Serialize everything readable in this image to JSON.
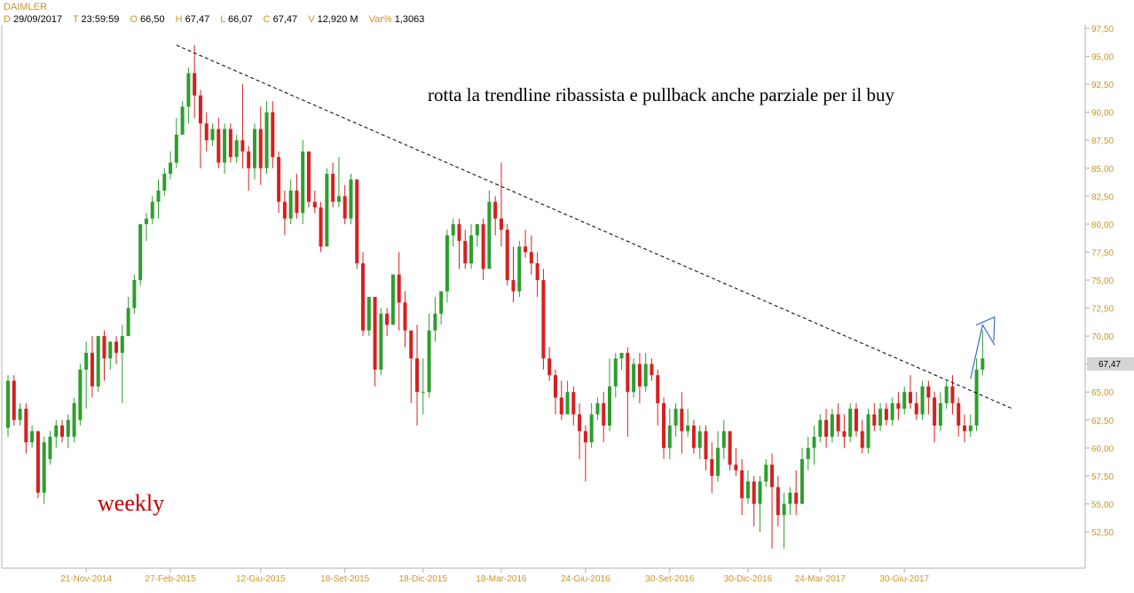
{
  "header": {
    "symbol": "DAIMLER",
    "date_label": "D",
    "date": "29/09/2017",
    "time_label": "T",
    "time": "23:59:59",
    "open_label": "O",
    "open": "66,50",
    "high_label": "H",
    "high": "67,47",
    "low_label": "L",
    "low": "66,07",
    "close_label": "C",
    "close": "67,47",
    "volume_label": "V",
    "volume": "12,920 M",
    "var_label": "Var%",
    "var": "1,3063"
  },
  "colors": {
    "up": "#2e9e2e",
    "down": "#d62020",
    "axis": "#c8962a",
    "trendline": "#000000",
    "arrow": "#3a6fc4",
    "weekly_text": "#c00000",
    "price_tag_bg": "#d4d4d4"
  },
  "chart_data": {
    "type": "candlestick",
    "timeframe_text": "weekly",
    "annotation": "rotta la trendline ribassista e pullback anche parziale per il buy",
    "ylim": [
      50,
      97.5
    ],
    "y_ticks": [
      "97,50",
      "95,00",
      "92,50",
      "90,00",
      "87,50",
      "85,00",
      "82,50",
      "80,00",
      "77,50",
      "75,00",
      "72,50",
      "70,00",
      "67,50",
      "65,00",
      "62,50",
      "60,00",
      "57,50",
      "55,00",
      "52,50"
    ],
    "y_tick_values": [
      97.5,
      95,
      92.5,
      90,
      87.5,
      85,
      82.5,
      80,
      77.5,
      75,
      72.5,
      70,
      67.5,
      65,
      62.5,
      60,
      57.5,
      55,
      52.5
    ],
    "x_ticks": [
      {
        "label": "21-Nov-2014",
        "index": 13
      },
      {
        "label": "27-Feb-2015",
        "index": 27
      },
      {
        "label": "12-Giu-2015",
        "index": 42
      },
      {
        "label": "18-Set-2015",
        "index": 56
      },
      {
        "label": "18-Dic-2015",
        "index": 69
      },
      {
        "label": "18-Mar-2016",
        "index": 82
      },
      {
        "label": "24-Giu-2016",
        "index": 96
      },
      {
        "label": "30-Set-2016",
        "index": 110
      },
      {
        "label": "30-Dic-2016",
        "index": 123
      },
      {
        "label": "24-Mar-2017",
        "index": 135
      },
      {
        "label": "30-Giu-2017",
        "index": 149
      }
    ],
    "last_price_label": "67,47",
    "last_price": 67.47,
    "trendline": {
      "start": {
        "index": 28,
        "price": 96.0
      },
      "end": {
        "index": 167,
        "price": 63.5
      }
    },
    "arrow": [
      {
        "index": 160,
        "price": 66.2
      },
      {
        "index": 162,
        "price": 71.0
      },
      {
        "index": 164,
        "price": 69.2
      },
      {
        "index": 164,
        "price": 71.7
      }
    ],
    "candles": [
      [
        61.8,
        66.0,
        61.0,
        66.5
      ],
      [
        66.0,
        62.5,
        62.0,
        66.5
      ],
      [
        62.5,
        63.5,
        62.0,
        64.0
      ],
      [
        63.5,
        60.5,
        59.5,
        64.0
      ],
      [
        60.5,
        61.5,
        60.0,
        62.0
      ],
      [
        61.5,
        56.0,
        55.5,
        61.5
      ],
      [
        56.0,
        60.5,
        55.0,
        61.0
      ],
      [
        59.0,
        61.0,
        58.5,
        61.5
      ],
      [
        61.0,
        62.0,
        60.0,
        62.5
      ],
      [
        62.0,
        61.0,
        60.5,
        62.5
      ],
      [
        61.0,
        62.5,
        60.0,
        63.0
      ],
      [
        61.0,
        64.0,
        60.5,
        64.5
      ],
      [
        62.5,
        67.0,
        62.0,
        67.5
      ],
      [
        67.0,
        68.5,
        63.5,
        69.5
      ],
      [
        68.5,
        65.5,
        64.5,
        70.0
      ],
      [
        65.5,
        70.0,
        65.0,
        70.0
      ],
      [
        70.0,
        68.0,
        66.0,
        70.5
      ],
      [
        68.0,
        69.5,
        67.0,
        69.5
      ],
      [
        69.5,
        68.5,
        67.5,
        70.0
      ],
      [
        68.5,
        70.0,
        64.0,
        71.0
      ],
      [
        70.0,
        72.5,
        70.0,
        73.5
      ],
      [
        72.5,
        75.0,
        72.0,
        75.5
      ],
      [
        75.0,
        80.0,
        74.5,
        80.0
      ],
      [
        80.0,
        80.5,
        78.5,
        81.0
      ],
      [
        80.5,
        82.0,
        80.0,
        82.5
      ],
      [
        82.0,
        83.0,
        80.5,
        84.0
      ],
      [
        83.0,
        84.5,
        82.5,
        85.0
      ],
      [
        84.5,
        85.5,
        84.0,
        86.5
      ],
      [
        85.5,
        88.0,
        85.0,
        89.5
      ],
      [
        88.0,
        90.5,
        88.0,
        91.0
      ],
      [
        90.5,
        93.5,
        89.0,
        94.0
      ],
      [
        93.5,
        91.5,
        89.5,
        96.0
      ],
      [
        91.5,
        89.0,
        85.0,
        92.0
      ],
      [
        89.0,
        87.5,
        86.5,
        90.0
      ],
      [
        87.5,
        88.5,
        87.0,
        89.0
      ],
      [
        88.5,
        85.5,
        85.0,
        89.5
      ],
      [
        85.5,
        88.5,
        84.5,
        89.0
      ],
      [
        88.5,
        86.0,
        85.5,
        89.0
      ],
      [
        86.0,
        87.5,
        85.5,
        88.0
      ],
      [
        87.5,
        86.5,
        85.0,
        92.5
      ],
      [
        86.5,
        85.0,
        83.0,
        87.0
      ],
      [
        85.0,
        88.5,
        84.0,
        89.0
      ],
      [
        88.5,
        85.0,
        83.5,
        90.5
      ],
      [
        85.0,
        90.0,
        84.5,
        91.0
      ],
      [
        90.0,
        86.0,
        85.0,
        91.0
      ],
      [
        86.0,
        82.0,
        81.0,
        86.5
      ],
      [
        82.0,
        80.5,
        79.0,
        83.0
      ],
      [
        80.5,
        83.0,
        80.0,
        84.0
      ],
      [
        83.0,
        81.0,
        80.5,
        84.5
      ],
      [
        81.0,
        86.5,
        80.0,
        87.5
      ],
      [
        86.5,
        82.0,
        81.5,
        86.5
      ],
      [
        82.0,
        81.5,
        81.0,
        83.0
      ],
      [
        81.5,
        78.0,
        77.5,
        82.0
      ],
      [
        78.0,
        84.5,
        78.0,
        85.0
      ],
      [
        84.5,
        82.0,
        81.5,
        85.5
      ],
      [
        82.0,
        82.5,
        81.5,
        86.0
      ],
      [
        82.5,
        80.5,
        80.0,
        83.5
      ],
      [
        80.5,
        84.0,
        80.0,
        84.5
      ],
      [
        84.0,
        76.5,
        76.0,
        84.0
      ],
      [
        76.5,
        70.5,
        70.0,
        77.5
      ],
      [
        70.5,
        73.5,
        70.0,
        73.5
      ],
      [
        73.5,
        67.0,
        65.5,
        73.5
      ],
      [
        67.0,
        72.0,
        66.5,
        72.5
      ],
      [
        72.0,
        71.0,
        70.0,
        72.5
      ],
      [
        71.0,
        75.5,
        71.0,
        75.5
      ],
      [
        75.5,
        73.0,
        70.5,
        77.5
      ],
      [
        73.0,
        70.5,
        69.0,
        74.0
      ],
      [
        70.5,
        68.0,
        64.0,
        70.5
      ],
      [
        68.0,
        65.0,
        62.0,
        71.0
      ],
      [
        65.0,
        65.0,
        63.0,
        68.0
      ],
      [
        65.0,
        70.5,
        64.5,
        72.0
      ],
      [
        70.5,
        72.0,
        69.5,
        73.5
      ],
      [
        72.0,
        74.0,
        71.0,
        74.0
      ],
      [
        74.0,
        79.0,
        73.0,
        79.5
      ],
      [
        79.0,
        80.0,
        78.0,
        80.5
      ],
      [
        80.0,
        78.5,
        76.0,
        80.5
      ],
      [
        78.5,
        76.5,
        76.0,
        79.5
      ],
      [
        76.5,
        79.0,
        76.0,
        80.0
      ],
      [
        79.0,
        80.0,
        78.0,
        80.0
      ],
      [
        80.0,
        76.0,
        75.0,
        80.5
      ],
      [
        76.0,
        82.0,
        76.0,
        83.0
      ],
      [
        82.0,
        80.5,
        79.0,
        82.5
      ],
      [
        80.5,
        79.5,
        78.0,
        85.5
      ],
      [
        79.5,
        75.0,
        74.5,
        80.0
      ],
      [
        75.0,
        74.0,
        73.0,
        78.0
      ],
      [
        74.0,
        78.0,
        73.5,
        78.5
      ],
      [
        78.0,
        77.5,
        77.0,
        79.5
      ],
      [
        77.5,
        76.5,
        75.5,
        79.0
      ],
      [
        76.5,
        75.0,
        73.5,
        77.5
      ],
      [
        75.0,
        68.0,
        67.0,
        76.0
      ],
      [
        68.0,
        66.5,
        66.0,
        69.0
      ],
      [
        66.5,
        64.5,
        63.0,
        67.0
      ],
      [
        64.5,
        63.0,
        62.5,
        66.0
      ],
      [
        63.0,
        65.0,
        63.0,
        66.0
      ],
      [
        65.0,
        63.0,
        62.0,
        65.5
      ],
      [
        63.0,
        61.5,
        59.0,
        64.0
      ],
      [
        61.5,
        60.5,
        57.0,
        62.0
      ],
      [
        60.5,
        63.0,
        60.0,
        64.0
      ],
      [
        63.0,
        64.0,
        62.5,
        64.5
      ],
      [
        64.0,
        62.0,
        60.5,
        65.0
      ],
      [
        62.0,
        65.5,
        61.5,
        68.0
      ],
      [
        65.5,
        68.0,
        64.5,
        68.5
      ],
      [
        68.0,
        68.5,
        67.0,
        68.5
      ],
      [
        68.5,
        65.0,
        61.0,
        69.0
      ],
      [
        65.0,
        67.5,
        64.5,
        68.0
      ],
      [
        67.5,
        65.5,
        64.0,
        68.5
      ],
      [
        65.5,
        67.5,
        65.0,
        68.5
      ],
      [
        67.5,
        66.5,
        66.0,
        68.0
      ],
      [
        66.5,
        64.0,
        62.0,
        67.0
      ],
      [
        64.0,
        60.0,
        59.0,
        64.5
      ],
      [
        60.0,
        62.0,
        59.0,
        63.5
      ],
      [
        62.0,
        63.5,
        61.0,
        64.0
      ],
      [
        63.5,
        61.5,
        59.5,
        65.0
      ],
      [
        61.5,
        62.0,
        61.0,
        63.5
      ],
      [
        62.0,
        60.0,
        59.5,
        62.5
      ],
      [
        60.0,
        61.5,
        59.0,
        62.0
      ],
      [
        61.5,
        59.0,
        58.0,
        62.0
      ],
      [
        59.0,
        57.5,
        56.0,
        60.5
      ],
      [
        57.5,
        60.0,
        57.0,
        61.5
      ],
      [
        60.0,
        61.5,
        59.0,
        62.5
      ],
      [
        61.5,
        58.5,
        58.0,
        61.5
      ],
      [
        58.5,
        58.0,
        57.5,
        60.0
      ],
      [
        58.0,
        55.5,
        54.0,
        59.0
      ],
      [
        55.5,
        57.0,
        55.0,
        58.0
      ],
      [
        57.0,
        55.0,
        53.0,
        57.5
      ],
      [
        55.0,
        57.0,
        52.5,
        57.5
      ],
      [
        57.0,
        58.5,
        56.5,
        59.0
      ],
      [
        58.5,
        56.5,
        51.0,
        59.5
      ],
      [
        56.5,
        54.0,
        53.0,
        57.5
      ],
      [
        54.0,
        55.0,
        51.0,
        56.0
      ],
      [
        55.0,
        56.0,
        54.0,
        56.5
      ],
      [
        56.0,
        55.0,
        54.0,
        58.0
      ],
      [
        55.0,
        59.0,
        55.0,
        60.0
      ],
      [
        59.0,
        60.0,
        58.0,
        61.0
      ],
      [
        60.0,
        61.0,
        58.5,
        62.0
      ],
      [
        61.0,
        62.5,
        60.5,
        63.0
      ],
      [
        62.5,
        61.0,
        60.0,
        63.5
      ],
      [
        61.0,
        63.0,
        60.5,
        63.5
      ],
      [
        63.0,
        61.5,
        61.0,
        64.0
      ],
      [
        61.5,
        61.0,
        60.0,
        63.0
      ],
      [
        61.0,
        63.5,
        60.5,
        64.0
      ],
      [
        63.5,
        61.5,
        61.0,
        64.0
      ],
      [
        61.5,
        60.0,
        59.5,
        62.5
      ],
      [
        60.0,
        63.0,
        59.5,
        63.5
      ],
      [
        63.0,
        62.0,
        61.5,
        64.0
      ],
      [
        62.0,
        63.5,
        61.5,
        64.0
      ],
      [
        63.5,
        62.5,
        62.0,
        64.0
      ],
      [
        62.5,
        64.0,
        62.0,
        64.5
      ],
      [
        64.0,
        63.5,
        62.5,
        65.0
      ],
      [
        63.5,
        65.0,
        63.0,
        65.5
      ],
      [
        65.0,
        64.0,
        63.5,
        66.5
      ],
      [
        64.0,
        63.0,
        62.5,
        65.0
      ],
      [
        63.0,
        65.5,
        62.5,
        66.0
      ],
      [
        65.5,
        64.5,
        63.0,
        66.0
      ],
      [
        64.5,
        62.0,
        60.5,
        65.0
      ],
      [
        62.0,
        64.0,
        61.5,
        65.0
      ],
      [
        64.0,
        65.5,
        63.5,
        66.0
      ],
      [
        65.5,
        64.0,
        63.0,
        66.5
      ],
      [
        64.0,
        62.0,
        61.0,
        64.5
      ],
      [
        62.0,
        61.5,
        60.5,
        63.0
      ],
      [
        61.5,
        62.0,
        61.0,
        63.0
      ],
      [
        62.0,
        67.0,
        61.5,
        68.0
      ],
      [
        67.0,
        68.0,
        66.5,
        70.5
      ]
    ]
  }
}
